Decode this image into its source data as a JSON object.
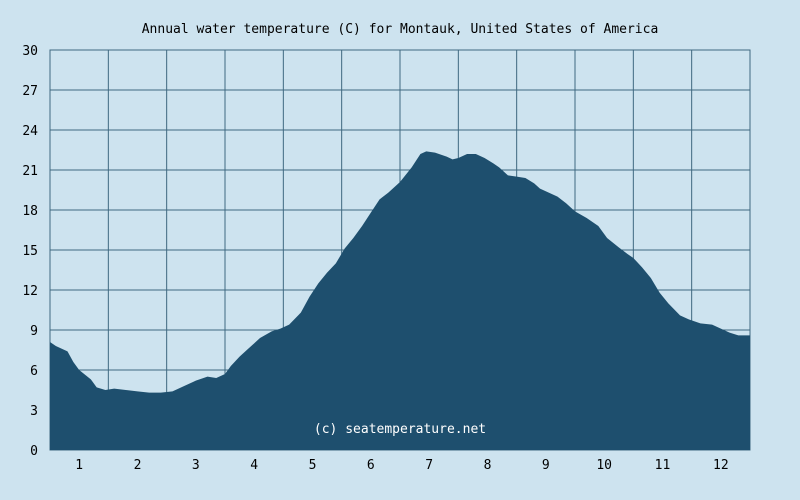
{
  "chart_data": {
    "type": "area",
    "title": "Annual water temperature (C) for Montauk, United States of America",
    "xlabel": "",
    "ylabel": "",
    "x_tick_labels": [
      "1",
      "2",
      "3",
      "4",
      "5",
      "6",
      "7",
      "8",
      "9",
      "10",
      "11",
      "12"
    ],
    "y_tick_labels": [
      "0",
      "3",
      "6",
      "9",
      "12",
      "15",
      "18",
      "21",
      "24",
      "27",
      "30"
    ],
    "xlim": [
      0.5,
      12.5
    ],
    "ylim": [
      0,
      30
    ],
    "grid": true,
    "x": [
      0.5,
      0.6,
      0.8,
      0.9,
      1.0,
      1.2,
      1.3,
      1.45,
      1.6,
      1.8,
      2.0,
      2.2,
      2.4,
      2.6,
      2.8,
      3.0,
      3.2,
      3.35,
      3.5,
      3.6,
      3.75,
      3.9,
      4.1,
      4.3,
      4.45,
      4.6,
      4.8,
      4.95,
      5.1,
      5.25,
      5.4,
      5.55,
      5.7,
      5.85,
      6.0,
      6.15,
      6.3,
      6.5,
      6.7,
      6.85,
      6.95,
      7.1,
      7.3,
      7.4,
      7.5,
      7.65,
      7.8,
      7.95,
      8.1,
      8.2,
      8.35,
      8.5,
      8.65,
      8.8,
      8.9,
      9.05,
      9.2,
      9.35,
      9.5,
      9.7,
      9.9,
      10.05,
      10.25,
      10.4,
      10.5,
      10.65,
      10.8,
      10.95,
      11.1,
      11.3,
      11.45,
      11.65,
      11.85,
      12.0,
      12.15,
      12.3,
      12.5
    ],
    "series": [
      {
        "values": [
          8.1,
          7.8,
          7.4,
          6.6,
          6.0,
          5.3,
          4.7,
          4.5,
          4.6,
          4.5,
          4.4,
          4.3,
          4.3,
          4.4,
          4.8,
          5.2,
          5.5,
          5.4,
          5.7,
          6.3,
          7.0,
          7.6,
          8.4,
          8.9,
          9.1,
          9.4,
          10.3,
          11.5,
          12.5,
          13.3,
          14.0,
          15.1,
          15.9,
          16.8,
          17.8,
          18.8,
          19.3,
          20.1,
          21.2,
          22.2,
          22.4,
          22.3,
          22.0,
          21.8,
          21.9,
          22.2,
          22.2,
          21.9,
          21.5,
          21.2,
          20.6,
          20.5,
          20.4,
          20.0,
          19.6,
          19.3,
          19.0,
          18.5,
          17.9,
          17.4,
          16.8,
          15.9,
          15.2,
          14.7,
          14.4,
          13.7,
          12.9,
          11.8,
          11.0,
          10.1,
          9.8,
          9.5,
          9.4,
          9.1,
          8.8,
          8.6,
          8.6
        ],
        "color": "#1e4f6e"
      }
    ],
    "watermark": "(c) seatemperature.net",
    "colors": {
      "background": "#cde3ef",
      "grid": "#3e6880",
      "area": "#1e4f6e",
      "watermark": "#ffffff"
    }
  }
}
